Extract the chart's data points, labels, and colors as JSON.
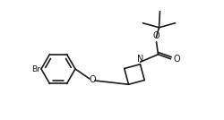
{
  "bg_color": "#ffffff",
  "line_color": "#1a1a1a",
  "line_width": 1.2,
  "text_color": "#1a1a1a",
  "br_label": "Br",
  "n_label": "N",
  "o_label1": "O",
  "o_label2": "O",
  "o_label3": "O",
  "figsize": [
    2.5,
    1.34
  ],
  "dpi": 100
}
